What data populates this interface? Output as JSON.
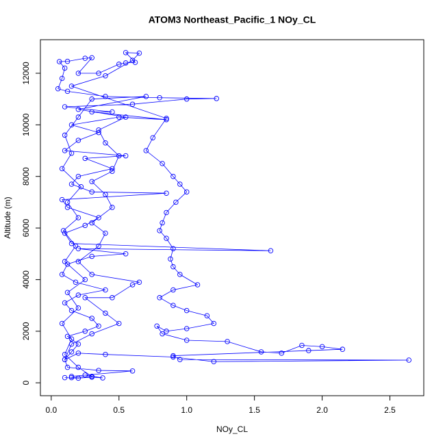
{
  "chart_data": {
    "type": "line",
    "title": "ATOM3 Northeast_Pacific_1 NOy_CL",
    "x_label": "NOy_CL",
    "y_label": "Altitude (m)",
    "color": "#0000ff",
    "markers": "open-circle",
    "xlim": [
      -0.08,
      2.75
    ],
    "ylim": [
      -500,
      13300
    ],
    "xticks": [
      {
        "value": 0,
        "label": "0.0"
      },
      0.5,
      {
        "value": 1,
        "label": "1.0"
      },
      1.5,
      {
        "value": 2,
        "label": "2.0"
      },
      2.5
    ],
    "yticks": [
      0,
      2000,
      4000,
      6000,
      8000,
      10000,
      12000
    ],
    "x": [
      0.1,
      0.2,
      0.3,
      0.38,
      0.25,
      0.15,
      0.6,
      0.35,
      0.12,
      0.1,
      0.15,
      0.2,
      0.12,
      0.25,
      0.35,
      0.3,
      0.15,
      0.1,
      0.2,
      0.4,
      0.18,
      0.08,
      0.12,
      0.3,
      0.55,
      0.2,
      1.62,
      0.15,
      0.1,
      0.25,
      0.35,
      0.12,
      0.08,
      0.85,
      0.3,
      0.15,
      0.2,
      0.45,
      0.25,
      0.55,
      0.1,
      0.2,
      0.35,
      0.15,
      0.5,
      0.85,
      0.3,
      0.45,
      0.1,
      0.6,
      1.0,
      1.22,
      0.8,
      0.4,
      0.12,
      0.05,
      0.08,
      0.1,
      0.06,
      0.12,
      0.25,
      0.3,
      0.2,
      0.35,
      0.5,
      0.55,
      0.62,
      0.55,
      0.65,
      0.6,
      0.4,
      0.15,
      0.85,
      0.75,
      0.7,
      0.82,
      0.9,
      0.95,
      1.0,
      0.92,
      0.85,
      0.82,
      0.8,
      0.85,
      0.9,
      0.88,
      0.9,
      0.95,
      1.08,
      0.9,
      0.8,
      0.9,
      1.0,
      1.15,
      1.2,
      1.0,
      0.85,
      0.78,
      0.82,
      1.0,
      1.3,
      1.55,
      1.7,
      1.85,
      2.0,
      2.15,
      1.9,
      0.9,
      0.95,
      2.64,
      1.2,
      0.9,
      0.4,
      0.2,
      0.1,
      0.15,
      0.3,
      0.5,
      0.4,
      0.25,
      0.45,
      0.6,
      0.65,
      0.3,
      0.2,
      0.35,
      0.4,
      0.3,
      0.45,
      0.4,
      0.3,
      0.45,
      0.5,
      0.4,
      0.35,
      0.55,
      0.2,
      0.7,
      0.3,
      0.2,
      0.1,
      0.15,
      0.08,
      0.22,
      0.12,
      0.2,
      0.09,
      0.18,
      0.1,
      0.25,
      0.12,
      0.2,
      0.08,
      0.15,
      0.1,
      0.2,
      0.3,
      0.15
    ],
    "values": [
      200,
      180,
      220,
      190,
      300,
      250,
      460,
      480,
      600,
      900,
      1200,
      1500,
      1800,
      2000,
      2200,
      2500,
      2800,
      3100,
      3400,
      3600,
      3900,
      4200,
      4600,
      4900,
      5000,
      5200,
      5120,
      5400,
      5800,
      6100,
      6400,
      6800,
      7100,
      7350,
      7400,
      7700,
      8000,
      8300,
      8700,
      8800,
      9000,
      9400,
      9700,
      10000,
      10300,
      10200,
      10500,
      10500,
      10700,
      10800,
      11000,
      11020,
      11050,
      11100,
      11300,
      11400,
      11800,
      12200,
      12450,
      12460,
      12580,
      12600,
      12000,
      12000,
      12350,
      12400,
      12420,
      12800,
      12780,
      12500,
      11900,
      11500,
      10250,
      9500,
      9000,
      8500,
      8000,
      7700,
      7400,
      7000,
      6600,
      6200,
      5900,
      5600,
      5200,
      4800,
      4500,
      4200,
      3800,
      3600,
      3300,
      3000,
      2800,
      2600,
      2300,
      2100,
      2000,
      2200,
      1900,
      1650,
      1600,
      1200,
      1150,
      1450,
      1400,
      1300,
      1250,
      1050,
      900,
      880,
      820,
      1000,
      1100,
      1150,
      900,
      1500,
      1900,
      2300,
      2700,
      3300,
      3300,
      3800,
      3900,
      4200,
      4700,
      5300,
      5800,
      6200,
      6800,
      7300,
      7800,
      8200,
      8800,
      9300,
      9800,
      10300,
      10600,
      11100,
      11000,
      10300,
      9600,
      8900,
      8300,
      7600,
      7000,
      6400,
      5900,
      5300,
      4700,
      4000,
      3500,
      2900,
      2300,
      1700,
      1100,
      600,
      250,
      200
    ]
  }
}
